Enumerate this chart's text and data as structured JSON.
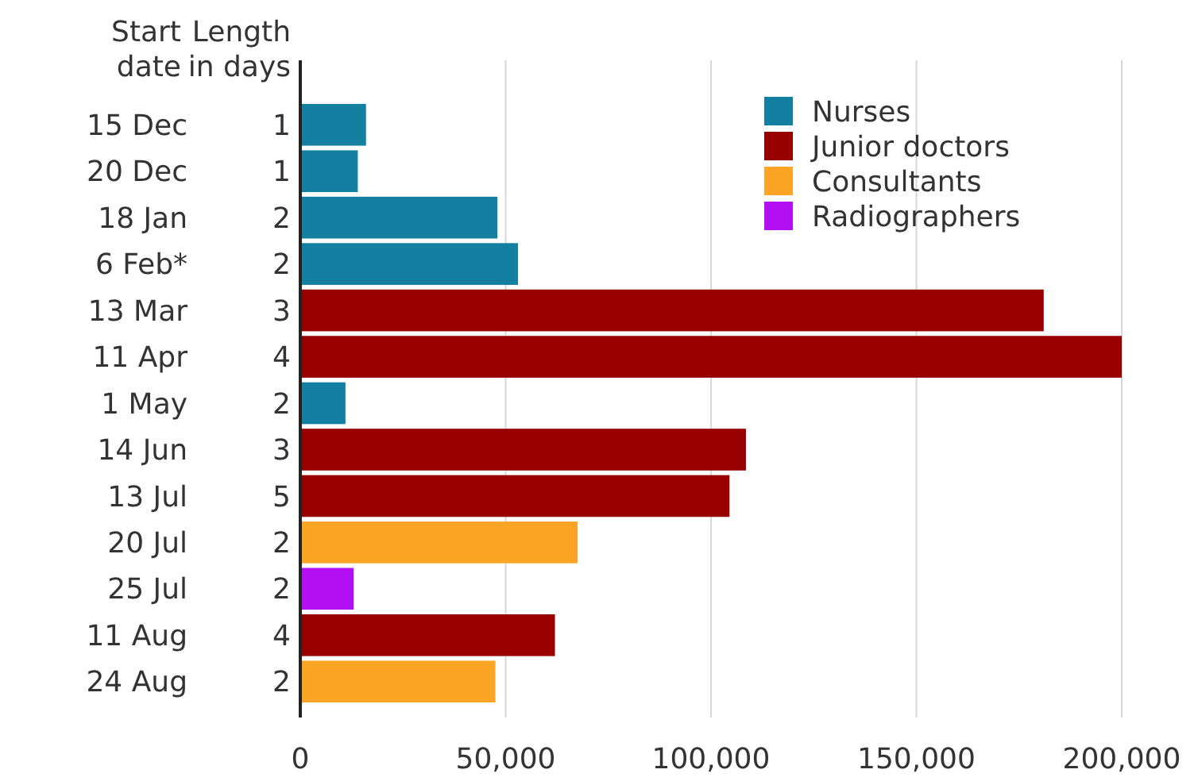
{
  "chart_data": {
    "type": "bar",
    "orientation": "horizontal",
    "ylabel": "Start date",
    "y2label": "Length in days",
    "categories": [
      "15 Dec",
      "20 Dec",
      "18 Jan",
      "6 Feb*",
      "13 Mar",
      "11 Apr",
      "1 May",
      "14 Jun",
      "13 Jul",
      "20 Jul",
      "25 Jul",
      "11 Aug",
      "24 Aug"
    ],
    "y2_categories": [
      "1",
      "1",
      "2",
      "2",
      "3",
      "4",
      "2",
      "3",
      "5",
      "2",
      "2",
      "4",
      "2"
    ],
    "series": [
      {
        "name": "Nurses",
        "color": "#1380a1",
        "values": [
          16000,
          14000,
          48000,
          53000,
          null,
          null,
          11000,
          null,
          null,
          null,
          null,
          null,
          null
        ]
      },
      {
        "name": "Junior doctors",
        "color": "#990000",
        "values": [
          null,
          null,
          null,
          null,
          181000,
          200000,
          null,
          108500,
          104500,
          null,
          null,
          62000,
          null
        ]
      },
      {
        "name": "Consultants",
        "color": "#fca524",
        "values": [
          null,
          null,
          null,
          null,
          null,
          null,
          null,
          null,
          null,
          67500,
          null,
          null,
          47500
        ]
      },
      {
        "name": "Radiographers",
        "color": "#b30ff5",
        "values": [
          null,
          null,
          null,
          null,
          null,
          null,
          null,
          null,
          null,
          null,
          13000,
          null,
          null
        ]
      }
    ],
    "xlim": [
      0,
      200000
    ],
    "xticks": [
      0,
      {
        "value": 50000,
        "label": "50,000"
      },
      {
        "value": 100000,
        "label": "100,000"
      },
      {
        "value": 150000,
        "label": "150,000"
      },
      {
        "value": 200000,
        "label": "200,000"
      }
    ],
    "grid": "x",
    "legend": "top right"
  }
}
